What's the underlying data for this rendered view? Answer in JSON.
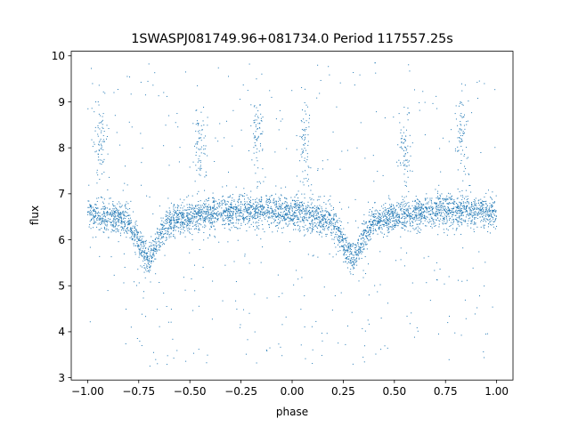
{
  "chart_data": {
    "type": "scatter",
    "title": "1SWASPJ081749.96+081734.0 Period 117557.25s",
    "xlabel": "phase",
    "ylabel": "flux",
    "xlim": [
      -1.08,
      1.08
    ],
    "ylim": [
      2.95,
      10.1
    ],
    "xticks": [
      -1.0,
      -0.75,
      -0.5,
      -0.25,
      0.0,
      0.25,
      0.5,
      0.75,
      1.0
    ],
    "xtick_labels": [
      "−1.00",
      "−0.75",
      "−0.50",
      "−0.25",
      "0.00",
      "0.25",
      "0.50",
      "0.75",
      "1.00"
    ],
    "yticks": [
      3,
      4,
      5,
      6,
      7,
      8,
      9,
      10
    ],
    "ytick_labels": [
      "3",
      "4",
      "5",
      "6",
      "7",
      "8",
      "9",
      "10"
    ],
    "grid": false,
    "legend": "none",
    "marker_color": "#1f77b4",
    "light_curve": {
      "phase": [
        -1.0,
        -0.9,
        -0.8,
        -0.76,
        -0.72,
        -0.7,
        -0.68,
        -0.65,
        -0.6,
        -0.5,
        -0.25,
        0.0,
        0.2,
        0.24,
        0.28,
        0.3,
        0.32,
        0.35,
        0.4,
        0.5,
        0.75,
        1.0
      ],
      "flux": [
        6.55,
        6.5,
        6.4,
        6.0,
        5.7,
        5.55,
        5.75,
        6.05,
        6.4,
        6.5,
        6.65,
        6.6,
        6.4,
        6.0,
        5.7,
        5.55,
        5.75,
        6.05,
        6.4,
        6.5,
        6.65,
        6.6
      ]
    },
    "high_flux_clusters": [
      {
        "phase": -0.94,
        "flux": 8.1
      },
      {
        "phase": -0.45,
        "flux": 8.0
      },
      {
        "phase": -0.17,
        "flux": 8.3
      },
      {
        "phase": 0.06,
        "flux": 8.1
      },
      {
        "phase": 0.55,
        "flux": 8.0
      },
      {
        "phase": 0.83,
        "flux": 8.3
      }
    ]
  }
}
